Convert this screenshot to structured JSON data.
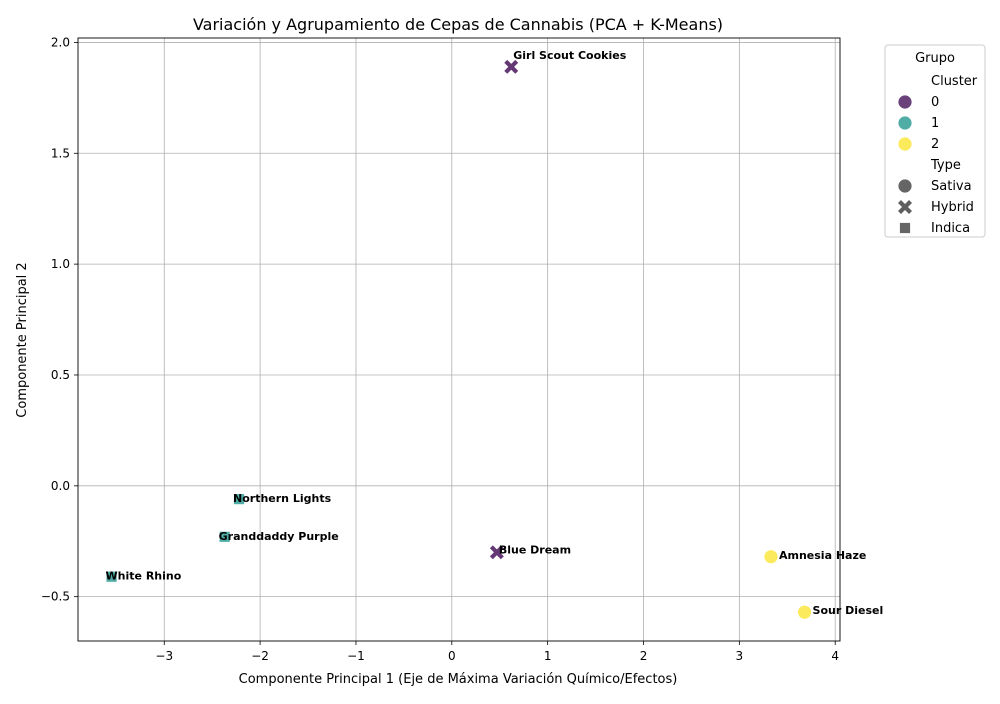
{
  "chart_data": {
    "type": "scatter",
    "title": "Variación y Agrupamiento de Cepas de Cannabis (PCA + K-Means)",
    "xlabel": "Componente Principal 1 (Eje de Máxima Variación Químico/Efectos)",
    "ylabel": "Componente Principal 2",
    "xlim": [
      -3.9,
      4.05
    ],
    "ylim": [
      -0.7,
      2.02
    ],
    "xticks": [
      -3,
      -2,
      -1,
      0,
      1,
      2,
      3,
      4
    ],
    "yticks": [
      -0.5,
      0.0,
      0.5,
      1.0,
      1.5,
      2.0
    ],
    "xtick_labels": [
      "−3",
      "−2",
      "−1",
      "0",
      "1",
      "2",
      "3",
      "4"
    ],
    "ytick_labels": [
      "−0.5",
      "0.0",
      "0.5",
      "1.0",
      "1.5",
      "2.0"
    ],
    "grid": true,
    "legend_placement": "outside-top-right",
    "cluster_colors": {
      "0": "#5c2d6e",
      "1": "#3ea59d",
      "2": "#fbe84a"
    },
    "points": [
      {
        "name": "Girl Scout Cookies",
        "x": 0.62,
        "y": 1.89,
        "cluster": "0",
        "type": "Hybrid"
      },
      {
        "name": "Northern Lights",
        "x": -2.22,
        "y": -0.06,
        "cluster": "1",
        "type": "Indica"
      },
      {
        "name": "Granddaddy Purple",
        "x": -2.37,
        "y": -0.23,
        "cluster": "1",
        "type": "Indica"
      },
      {
        "name": "Blue Dream",
        "x": 0.47,
        "y": -0.3,
        "cluster": "0",
        "type": "Hybrid"
      },
      {
        "name": "White Rhino",
        "x": -3.55,
        "y": -0.41,
        "cluster": "1",
        "type": "Indica"
      },
      {
        "name": "Amnesia Haze",
        "x": 3.33,
        "y": -0.32,
        "cluster": "2",
        "type": "Sativa"
      },
      {
        "name": "Sour Diesel",
        "x": 3.68,
        "y": -0.57,
        "cluster": "2",
        "type": "Sativa"
      }
    ],
    "legend": {
      "title": "Grupo",
      "hue_title": "Cluster",
      "hue_entries": [
        "0",
        "1",
        "2"
      ],
      "style_title": "Type",
      "style_entries": [
        {
          "label": "Sativa",
          "marker": "circle"
        },
        {
          "label": "Hybrid",
          "marker": "x"
        },
        {
          "label": "Indica",
          "marker": "square"
        }
      ]
    }
  }
}
